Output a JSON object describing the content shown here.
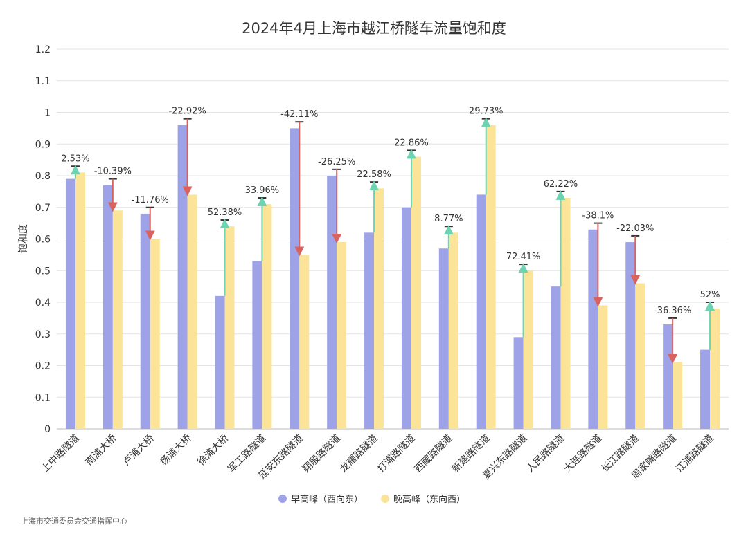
{
  "chart_data": {
    "type": "bar",
    "title": "2024年4月上海市越江桥隧车流量饱和度",
    "ylabel": "饱和度",
    "xlabel": "",
    "ylim": [
      0,
      1.2
    ],
    "yticks": [
      "0",
      "0.1",
      "0.2",
      "0.3",
      "0.4",
      "0.5",
      "0.6",
      "0.7",
      "0.8",
      "0.9",
      "1",
      "1.1",
      "1.2"
    ],
    "grid": true,
    "legend_position": "bottom-center",
    "categories": [
      "上中路隧道",
      "南浦大桥",
      "卢浦大桥",
      "杨浦大桥",
      "徐浦大桥",
      "军工路隧道",
      "延安东路隧道",
      "翔殷路隧道",
      "龙耀路隧道",
      "打浦路隧道",
      "西藏路隧道",
      "新建路隧道",
      "复兴东路隧道",
      "人民路隧道",
      "大连路隧道",
      "长江路隧道",
      "周家嘴路隧道",
      "江浦路隧道"
    ],
    "series": [
      {
        "name": "早高峰（西向东）",
        "color": "#9da3e6",
        "values": [
          0.79,
          0.77,
          0.68,
          0.96,
          0.42,
          0.53,
          0.95,
          0.8,
          0.62,
          0.7,
          0.57,
          0.74,
          0.29,
          0.45,
          0.63,
          0.59,
          0.33,
          0.25
        ]
      },
      {
        "name": "晚高峰（东向西）",
        "color": "#fbe497",
        "values": [
          0.81,
          0.69,
          0.6,
          0.74,
          0.64,
          0.71,
          0.55,
          0.59,
          0.76,
          0.86,
          0.62,
          0.96,
          0.5,
          0.73,
          0.39,
          0.46,
          0.21,
          0.38
        ]
      }
    ],
    "change_labels": [
      "2.53%",
      "-10.39%",
      "-11.76%",
      "-22.92%",
      "52.38%",
      "33.96%",
      "-42.11%",
      "-26.25%",
      "22.58%",
      "22.86%",
      "8.77%",
      "29.73%",
      "72.41%",
      "62.22%",
      "-38.1%",
      "-22.03%",
      "-36.36%",
      "52%"
    ],
    "increase_color": "#6dd3b0",
    "decrease_color": "#d9625f"
  },
  "footer": {
    "source": "上海市交通委员会交通指挥中心"
  }
}
